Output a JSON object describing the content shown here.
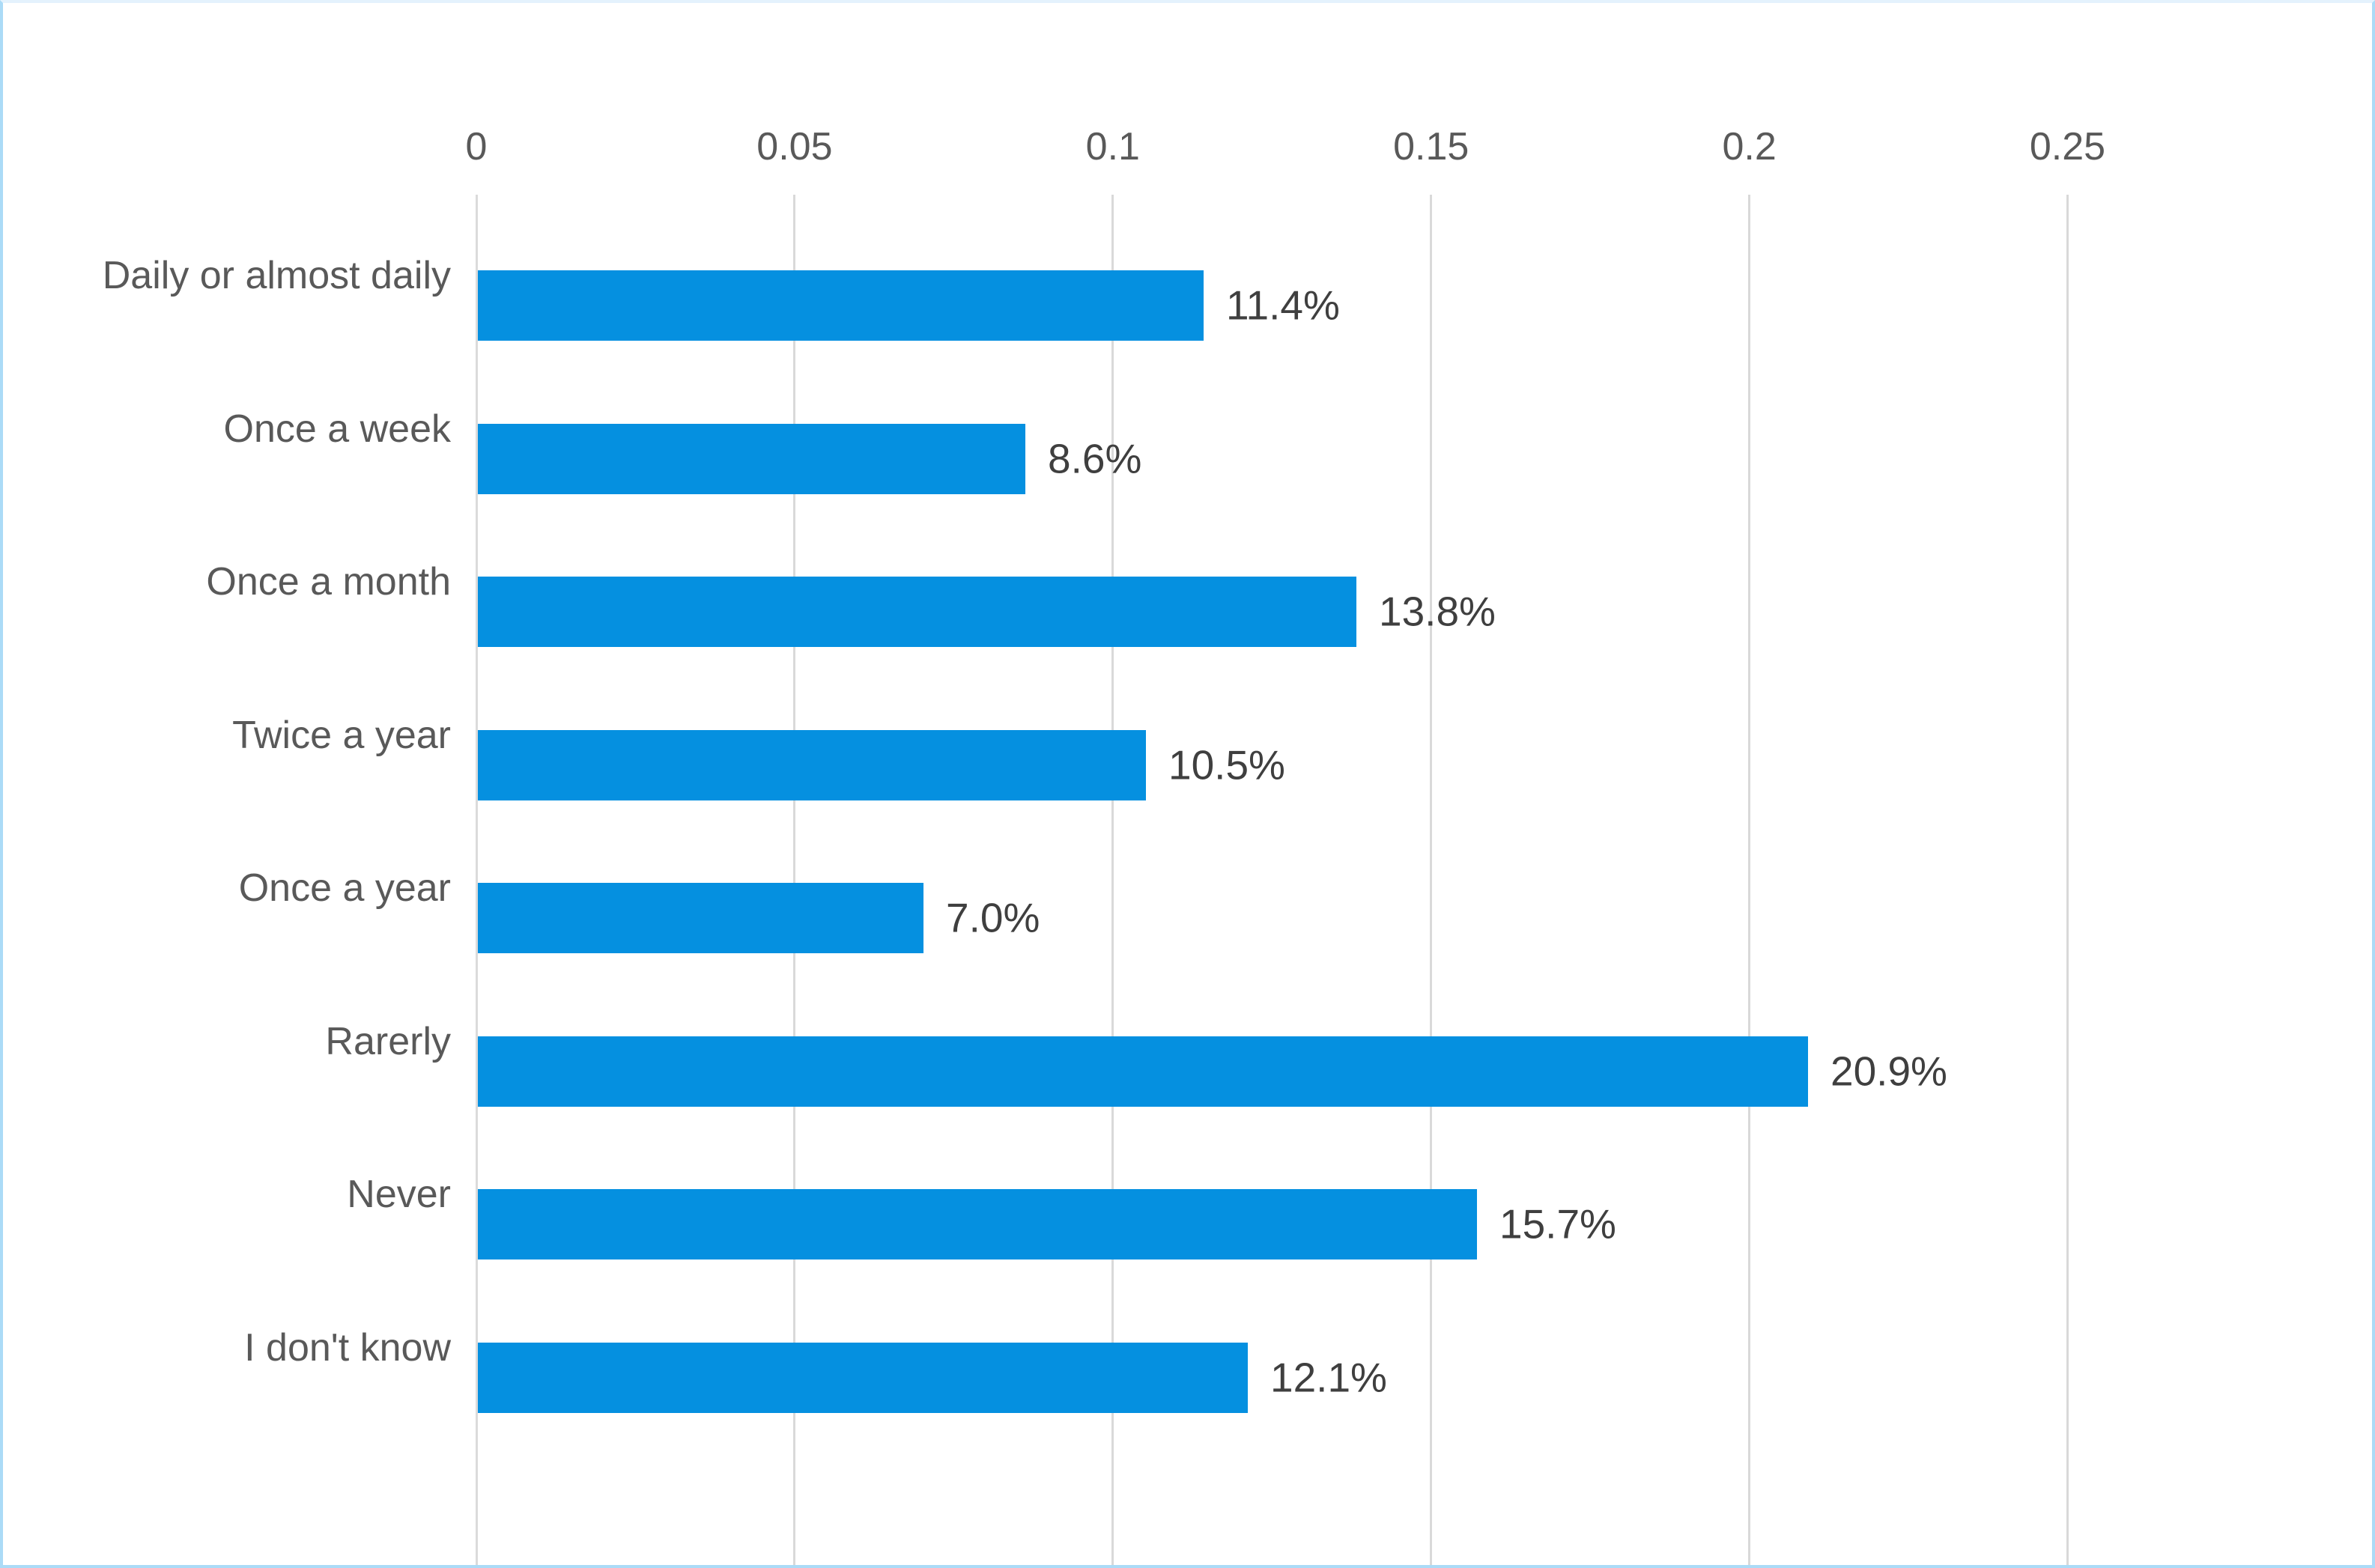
{
  "chart_data": {
    "type": "bar",
    "orientation": "horizontal",
    "title": "",
    "categories": [
      "Daily or almost daily",
      "Once a week",
      "Once a month",
      "Twice a year",
      "Once a year",
      "Rarerly",
      "Never",
      "I don't know"
    ],
    "values": [
      0.114,
      0.086,
      0.138,
      0.105,
      0.07,
      0.209,
      0.157,
      0.121
    ],
    "value_labels": [
      "11.4%",
      "8.6%",
      "13.8%",
      "10.5%",
      "7.0%",
      "20.9%",
      "15.7%",
      "12.1%"
    ],
    "x_ticks": [
      {
        "label": "0",
        "value": 0.0
      },
      {
        "label": "0.05",
        "value": 0.05
      },
      {
        "label": "0.1",
        "value": 0.1
      },
      {
        "label": "0.15",
        "value": 0.15
      },
      {
        "label": "0.2",
        "value": 0.2
      },
      {
        "label": "0.25",
        "value": 0.25
      }
    ],
    "xlim": [
      0,
      0.298
    ],
    "grid": true,
    "legend": "none",
    "axis_position": "top",
    "colors": {
      "bar": "#0590E0",
      "gridline": "#D9D9D9",
      "axis_line": "#DBDBDB",
      "tick_text": "#595959",
      "category_text": "#595959",
      "value_text": "#3F3F3F",
      "background": "#FFFFFF",
      "frame_border": "#ABDBF7",
      "frame_border_top": "#E4F2FD"
    }
  }
}
